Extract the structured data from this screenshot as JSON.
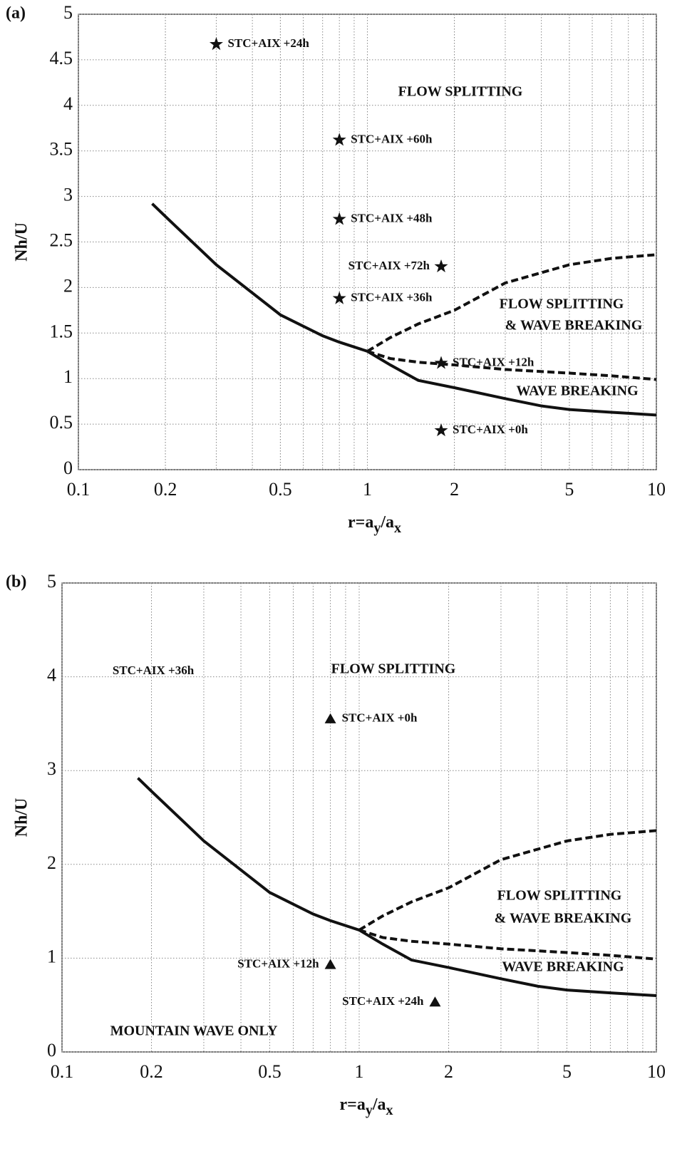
{
  "chart_data": [
    {
      "type": "line",
      "panel_label": "(a)",
      "xlabel": [
        "r=a",
        "y",
        "/a",
        "x"
      ],
      "ylabel": "Nh/U",
      "xscale": "log",
      "xlim": [
        0.1,
        10
      ],
      "ylim": [
        0,
        5
      ],
      "grid": true,
      "color": "#111111",
      "xticks": [
        0.1,
        0.2,
        0.5,
        1,
        2,
        5,
        10
      ],
      "yticks": [
        0,
        0.5,
        1,
        1.5,
        2,
        2.5,
        3,
        3.5,
        4,
        4.5,
        5
      ],
      "curves": [
        {
          "style": "solid",
          "x": [
            0.18,
            0.2,
            0.3,
            0.5,
            0.7,
            0.8,
            1,
            1.2,
            1.5,
            2,
            3,
            4,
            5,
            7,
            10
          ],
          "y": [
            2.92,
            2.78,
            2.25,
            1.7,
            1.47,
            1.4,
            1.3,
            1.15,
            0.98,
            0.9,
            0.78,
            0.7,
            0.66,
            0.63,
            0.6
          ]
        },
        {
          "style": "dashed",
          "x": [
            1,
            1.2,
            1.5,
            2,
            3,
            5,
            7,
            10
          ],
          "y": [
            1.3,
            1.45,
            1.6,
            1.75,
            2.05,
            2.25,
            2.32,
            2.36
          ]
        },
        {
          "style": "dashed",
          "x": [
            1,
            1.2,
            1.5,
            2,
            3,
            5,
            7,
            10
          ],
          "y": [
            1.3,
            1.22,
            1.18,
            1.15,
            1.1,
            1.06,
            1.03,
            0.99
          ]
        }
      ],
      "points": {
        "marker": "star",
        "x": [
          0.3,
          0.8,
          0.8,
          1.8,
          0.8,
          1.8,
          1.8
        ],
        "y": [
          4.67,
          3.62,
          2.75,
          2.23,
          1.88,
          1.17,
          0.43
        ],
        "labels": [
          "STC+AIX +24h",
          "STC+AIX +60h",
          "STC+AIX +48h",
          "STC+AIX +72h",
          "STC+AIX +36h",
          "STC+AIX +12h",
          "STC+AIX +0h"
        ]
      },
      "annotations": [
        "FLOW SPLITTING",
        "FLOW SPLITTING",
        "& WAVE BREAKING",
        "WAVE BREAKING"
      ]
    },
    {
      "type": "line",
      "panel_label": "(b)",
      "xlabel": [
        "r=a",
        "y",
        "/a",
        "x"
      ],
      "ylabel": "Nh/U",
      "xscale": "log",
      "xlim": [
        0.1,
        10
      ],
      "ylim": [
        0,
        5
      ],
      "grid": true,
      "color": "#111111",
      "xticks": [
        0.1,
        0.2,
        0.5,
        1,
        2,
        5,
        10
      ],
      "yticks": [
        0,
        1,
        2,
        3,
        4,
        5
      ],
      "curves": [
        {
          "style": "solid",
          "x": [
            0.18,
            0.2,
            0.3,
            0.5,
            0.7,
            0.8,
            1,
            1.2,
            1.5,
            2,
            3,
            4,
            5,
            7,
            10
          ],
          "y": [
            2.92,
            2.78,
            2.25,
            1.7,
            1.47,
            1.4,
            1.3,
            1.15,
            0.98,
            0.9,
            0.78,
            0.7,
            0.66,
            0.63,
            0.6
          ]
        },
        {
          "style": "dashed",
          "x": [
            1,
            1.2,
            1.5,
            2,
            3,
            5,
            7,
            10
          ],
          "y": [
            1.3,
            1.45,
            1.6,
            1.75,
            2.05,
            2.25,
            2.32,
            2.36
          ]
        },
        {
          "style": "dashed",
          "x": [
            1,
            1.2,
            1.5,
            2,
            3,
            5,
            7,
            10
          ],
          "y": [
            1.3,
            1.22,
            1.18,
            1.15,
            1.1,
            1.06,
            1.03,
            0.99
          ]
        }
      ],
      "points": {
        "marker": "triangle",
        "x": [
          0.8,
          0.8,
          1.8
        ],
        "y": [
          3.55,
          0.93,
          0.53
        ],
        "labels": [
          "STC+AIX +0h",
          "STC+AIX +12h",
          "STC+AIX +24h"
        ]
      },
      "annotations": [
        "STC+AIX +36h",
        "FLOW SPLITTING",
        "FLOW SPLITTING",
        "& WAVE BREAKING",
        "WAVE BREAKING",
        "MOUNTAIN WAVE ONLY"
      ]
    }
  ]
}
